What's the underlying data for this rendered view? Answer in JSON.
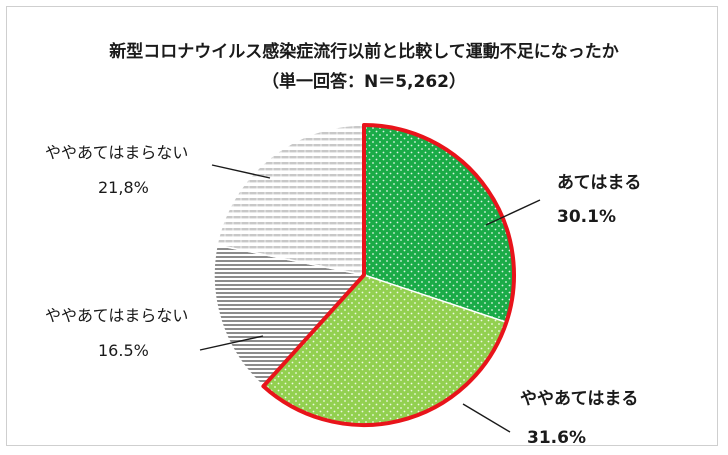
{
  "chart_data": {
    "type": "pie",
    "title": "新型コロナウイルス感染症流行以前と比較して運動不足になったか",
    "subtitle": "（単一回答：N＝5,262）",
    "slices": [
      {
        "label": "あてはまる",
        "value_label": "30.1%",
        "value": 30.1,
        "color": "#1aab47",
        "highlight": true
      },
      {
        "label": "ややあてはまる",
        "value_label": "31.6%",
        "value": 31.6,
        "color": "#92d050",
        "highlight": true
      },
      {
        "label": "ややあてはまらない",
        "value_label": "16.5%",
        "value": 16.5,
        "color": "#bfbfbf",
        "highlight": false
      },
      {
        "label": "ややあてはまらない",
        "value_label": "21,8%",
        "value": 21.8,
        "color": "#d9d9d9",
        "highlight": false
      }
    ],
    "highlight_color": "#e8141b"
  }
}
